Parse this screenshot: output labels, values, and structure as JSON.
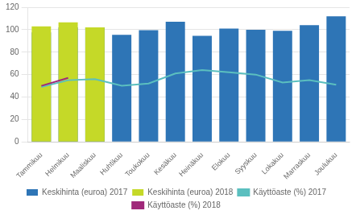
{
  "chart_data": {
    "type": "bar",
    "categories": [
      "Tammikuu",
      "Helmikuu",
      "Maaliskuu",
      "Huhtikuu",
      "Toukokuu",
      "Kesäkuu",
      "Heinäkuu",
      "Elokuu",
      "Syyskuu",
      "Lokakuu",
      "Marraskuu",
      "Joulukuu"
    ],
    "series": [
      {
        "name": "Keskihinta (euroa) 2017",
        "type": "bar",
        "color": "#2E75B6",
        "values": [
          97.5,
          102,
          102,
          95.5,
          99.5,
          107,
          94.5,
          101,
          100,
          99,
          104,
          112
        ]
      },
      {
        "name": "Keskihinta (euroa) 2018",
        "type": "bar",
        "color": "#C5D928",
        "values": [
          103,
          106.5,
          102,
          null,
          null,
          null,
          null,
          null,
          null,
          null,
          null,
          null
        ]
      },
      {
        "name": "Käyttöaste (%) 2017",
        "type": "line",
        "color": "#5BBFBF",
        "values": [
          49,
          55,
          56,
          50,
          52,
          61,
          64,
          62,
          60,
          53,
          55,
          51
        ]
      },
      {
        "name": "Käyttöaste (%) 2018",
        "type": "line",
        "color": "#A0287A",
        "values": [
          50,
          57,
          null,
          null,
          null,
          null,
          null,
          null,
          null,
          null,
          null,
          null
        ]
      }
    ],
    "ylim": [
      0,
      120
    ],
    "yticks": [
      0,
      20,
      40,
      60,
      80,
      100,
      120
    ],
    "grid": true,
    "legend": "bottom"
  }
}
